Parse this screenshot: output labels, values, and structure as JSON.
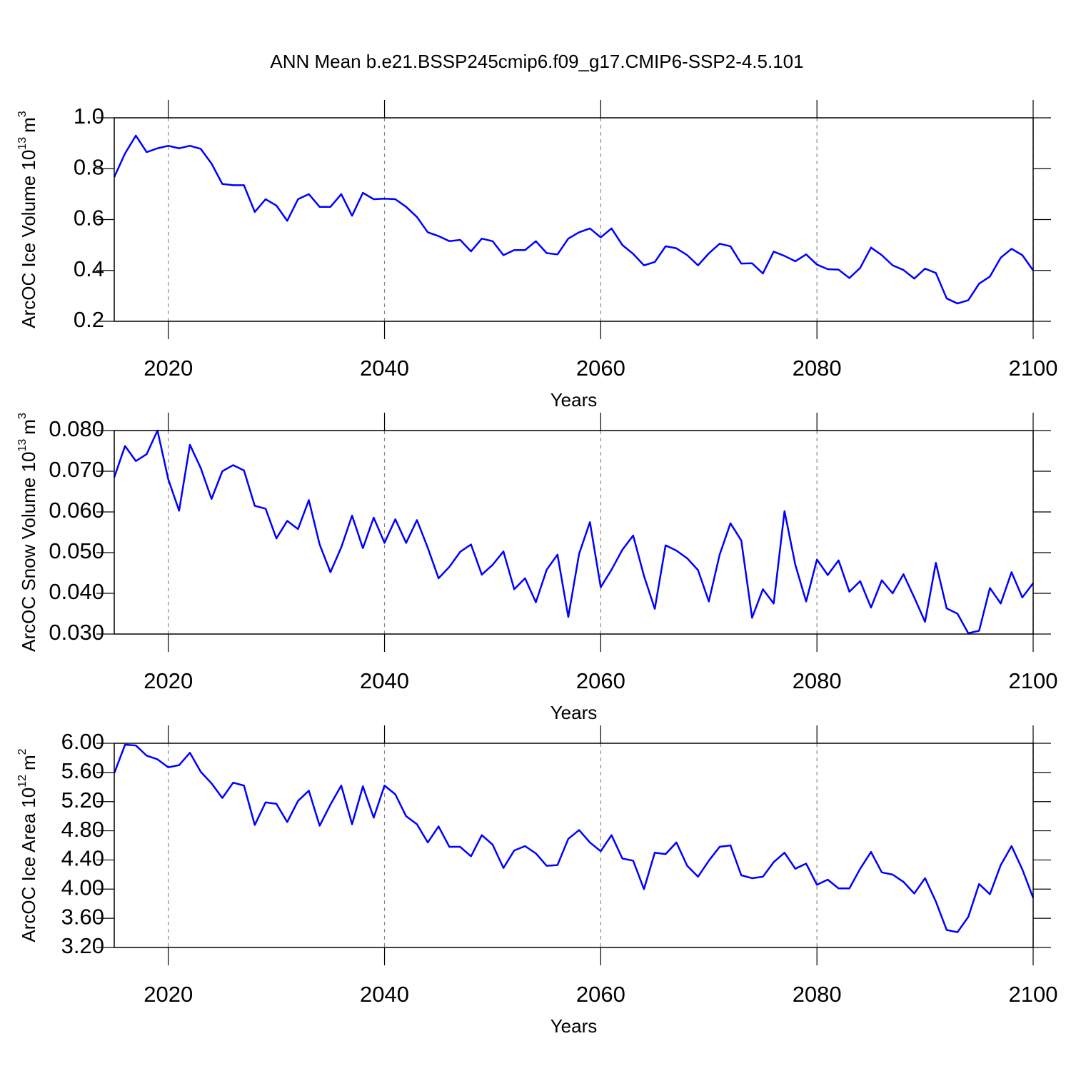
{
  "chart_data": [
    {
      "type": "line",
      "title": "ANN Mean b.e21.BSSP245cmip6.f09_g17.CMIP6-SSP2-4.5.101",
      "ylabel": {
        "text": "ArcOC Ice Volume 10",
        "exp": "13",
        "unit": "m",
        "unit_exp": "3"
      },
      "xlabel": "Years",
      "color": "#0000ff",
      "xgrid": true,
      "xlim": [
        2015,
        2100
      ],
      "xticks": [
        2020,
        2040,
        2060,
        2080,
        2100
      ],
      "ylim": [
        0.2,
        1.0
      ],
      "yticks": [
        0.2,
        0.4,
        0.6,
        0.8,
        {
          "value": 1.0,
          "label": "1.0"
        }
      ],
      "x": [
        2015,
        2016,
        2017,
        2018,
        2019,
        2020,
        2021,
        2022,
        2023,
        2024,
        2025,
        2026,
        2027,
        2028,
        2029,
        2030,
        2031,
        2032,
        2033,
        2034,
        2035,
        2036,
        2037,
        2038,
        2039,
        2040,
        2041,
        2042,
        2043,
        2044,
        2045,
        2046,
        2047,
        2048,
        2049,
        2050,
        2051,
        2052,
        2053,
        2054,
        2055,
        2056,
        2057,
        2058,
        2059,
        2060,
        2061,
        2062,
        2063,
        2064,
        2065,
        2066,
        2067,
        2068,
        2069,
        2070,
        2071,
        2072,
        2073,
        2074,
        2075,
        2076,
        2077,
        2078,
        2079,
        2080,
        2081,
        2082,
        2083,
        2084,
        2085,
        2086,
        2087,
        2088,
        2089,
        2090,
        2091,
        2092,
        2093,
        2094,
        2095,
        2096,
        2097,
        2098,
        2099,
        2100
      ],
      "values": [
        0.767,
        0.86,
        0.93,
        0.865,
        0.88,
        0.89,
        0.88,
        0.89,
        0.878,
        0.82,
        0.74,
        0.735,
        0.735,
        0.63,
        0.68,
        0.655,
        0.595,
        0.68,
        0.7,
        0.65,
        0.65,
        0.7,
        0.615,
        0.705,
        0.68,
        0.682,
        0.68,
        0.65,
        0.61,
        0.55,
        0.535,
        0.515,
        0.52,
        0.475,
        0.525,
        0.515,
        0.46,
        0.48,
        0.48,
        0.515,
        0.468,
        0.463,
        0.525,
        0.55,
        0.565,
        0.53,
        0.565,
        0.5,
        0.465,
        0.42,
        0.433,
        0.495,
        0.487,
        0.46,
        0.42,
        0.467,
        0.505,
        0.495,
        0.427,
        0.428,
        0.388,
        0.474,
        0.457,
        0.436,
        0.463,
        0.423,
        0.405,
        0.403,
        0.37,
        0.41,
        0.49,
        0.46,
        0.42,
        0.402,
        0.368,
        0.407,
        0.39,
        0.29,
        0.27,
        0.283,
        0.348,
        0.376,
        0.45,
        0.485,
        0.46,
        0.4
      ]
    },
    {
      "type": "line",
      "ylabel": {
        "text": "ArcOC Snow Volume 10",
        "exp": "13",
        "unit": "m",
        "unit_exp": "3"
      },
      "xlabel": "Years",
      "color": "#0000ff",
      "xgrid": true,
      "xlim": [
        2015,
        2100
      ],
      "xticks": [
        2020,
        2040,
        2060,
        2080,
        2100
      ],
      "ylim": [
        0.03,
        0.08
      ],
      "yticks": [
        {
          "value": 0.03,
          "label": "0.030"
        },
        {
          "value": 0.04,
          "label": "0.040"
        },
        {
          "value": 0.05,
          "label": "0.050"
        },
        {
          "value": 0.06,
          "label": "0.060"
        },
        {
          "value": 0.07,
          "label": "0.070"
        },
        {
          "value": 0.08,
          "label": "0.080"
        }
      ],
      "x": [
        2015,
        2016,
        2017,
        2018,
        2019,
        2020,
        2021,
        2022,
        2023,
        2024,
        2025,
        2026,
        2027,
        2028,
        2029,
        2030,
        2031,
        2032,
        2033,
        2034,
        2035,
        2036,
        2037,
        2038,
        2039,
        2040,
        2041,
        2042,
        2043,
        2044,
        2045,
        2046,
        2047,
        2048,
        2049,
        2050,
        2051,
        2052,
        2053,
        2054,
        2055,
        2056,
        2057,
        2058,
        2059,
        2060,
        2061,
        2062,
        2063,
        2064,
        2065,
        2066,
        2067,
        2068,
        2069,
        2070,
        2071,
        2072,
        2073,
        2074,
        2075,
        2076,
        2077,
        2078,
        2079,
        2080,
        2081,
        2082,
        2083,
        2084,
        2085,
        2086,
        2087,
        2088,
        2089,
        2090,
        2091,
        2092,
        2093,
        2094,
        2095,
        2096,
        2097,
        2098,
        2099,
        2100
      ],
      "values": [
        0.0685,
        0.0762,
        0.0725,
        0.0742,
        0.08,
        0.068,
        0.0603,
        0.0765,
        0.0708,
        0.0632,
        0.07,
        0.0715,
        0.0702,
        0.0615,
        0.0608,
        0.0535,
        0.0578,
        0.0558,
        0.0629,
        0.052,
        0.0452,
        0.0513,
        0.0591,
        0.0511,
        0.0586,
        0.0524,
        0.0582,
        0.0524,
        0.058,
        0.0512,
        0.0437,
        0.0465,
        0.0502,
        0.052,
        0.0446,
        0.047,
        0.0503,
        0.041,
        0.0437,
        0.0378,
        0.0458,
        0.0495,
        0.0342,
        0.0497,
        0.0575,
        0.0415,
        0.0458,
        0.0507,
        0.0542,
        0.0443,
        0.0362,
        0.0518,
        0.0505,
        0.0486,
        0.0457,
        0.038,
        0.0495,
        0.0572,
        0.053,
        0.034,
        0.041,
        0.0375,
        0.0602,
        0.047,
        0.038,
        0.0483,
        0.0445,
        0.0481,
        0.0404,
        0.043,
        0.0365,
        0.0432,
        0.04,
        0.0447,
        0.039,
        0.033,
        0.0475,
        0.0363,
        0.035,
        0.0302,
        0.0308,
        0.0413,
        0.0375,
        0.0452,
        0.039,
        0.0425
      ]
    },
    {
      "type": "line",
      "ylabel": {
        "text": "ArcOC Ice Area 10",
        "exp": "12",
        "unit": "m",
        "unit_exp": "2"
      },
      "xlabel": "Years",
      "color": "#0000ff",
      "xgrid": true,
      "xlim": [
        2015,
        2100
      ],
      "xticks": [
        2020,
        2040,
        2060,
        2080,
        2100
      ],
      "ylim": [
        3.2,
        6.0
      ],
      "yticks": [
        {
          "value": 3.2,
          "label": "3.20"
        },
        {
          "value": 3.6,
          "label": "3.60"
        },
        {
          "value": 4.0,
          "label": "4.00"
        },
        {
          "value": 4.4,
          "label": "4.40"
        },
        {
          "value": 4.8,
          "label": "4.80"
        },
        {
          "value": 5.2,
          "label": "5.20"
        },
        {
          "value": 5.6,
          "label": "5.60"
        },
        {
          "value": 6.0,
          "label": "6.00"
        }
      ],
      "x": [
        2015,
        2016,
        2017,
        2018,
        2019,
        2020,
        2021,
        2022,
        2023,
        2024,
        2025,
        2026,
        2027,
        2028,
        2029,
        2030,
        2031,
        2032,
        2033,
        2034,
        2035,
        2036,
        2037,
        2038,
        2039,
        2040,
        2041,
        2042,
        2043,
        2044,
        2045,
        2046,
        2047,
        2048,
        2049,
        2050,
        2051,
        2052,
        2053,
        2054,
        2055,
        2056,
        2057,
        2058,
        2059,
        2060,
        2061,
        2062,
        2063,
        2064,
        2065,
        2066,
        2067,
        2068,
        2069,
        2070,
        2071,
        2072,
        2073,
        2074,
        2075,
        2076,
        2077,
        2078,
        2079,
        2080,
        2081,
        2082,
        2083,
        2084,
        2085,
        2086,
        2087,
        2088,
        2089,
        2090,
        2091,
        2092,
        2093,
        2094,
        2095,
        2096,
        2097,
        2098,
        2099,
        2100
      ],
      "values": [
        5.59,
        5.98,
        5.97,
        5.83,
        5.78,
        5.67,
        5.7,
        5.87,
        5.61,
        5.45,
        5.25,
        5.46,
        5.42,
        4.88,
        5.19,
        5.17,
        4.92,
        5.21,
        5.35,
        4.87,
        5.16,
        5.42,
        4.89,
        5.41,
        4.98,
        5.42,
        5.3,
        5.0,
        4.89,
        4.64,
        4.86,
        4.58,
        4.58,
        4.45,
        4.74,
        4.61,
        4.29,
        4.53,
        4.59,
        4.49,
        4.32,
        4.33,
        4.69,
        4.81,
        4.64,
        4.52,
        4.74,
        4.42,
        4.39,
        4.0,
        4.5,
        4.48,
        4.64,
        4.32,
        4.17,
        4.39,
        4.58,
        4.6,
        4.19,
        4.15,
        4.17,
        4.37,
        4.5,
        4.28,
        4.35,
        4.06,
        4.13,
        4.01,
        4.01,
        4.28,
        4.51,
        4.23,
        4.2,
        4.1,
        3.94,
        4.15,
        3.83,
        3.44,
        3.41,
        3.62,
        4.07,
        3.93,
        4.33,
        4.59,
        4.27,
        3.88
      ]
    }
  ]
}
